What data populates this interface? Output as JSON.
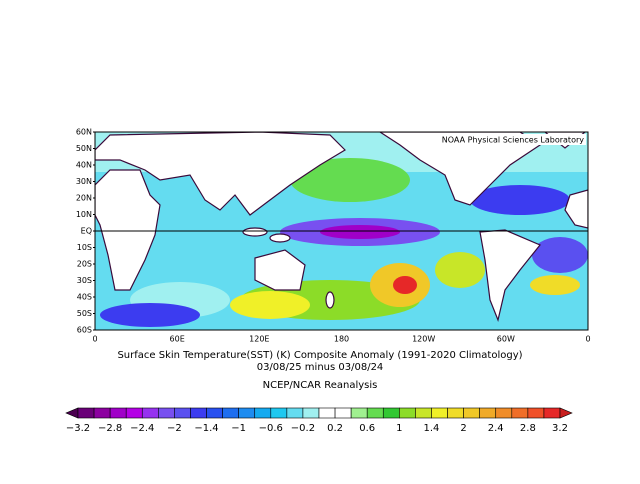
{
  "map": {
    "credit": "NOAA Physical Sciences Laboratory",
    "lat_labels": [
      "60N",
      "50N",
      "40N",
      "30N",
      "20N",
      "10N",
      "EQ",
      "10S",
      "20S",
      "30S",
      "40S",
      "50S",
      "60S"
    ],
    "lon_labels": [
      "0",
      "60E",
      "120E",
      "180",
      "120W",
      "60W",
      "0"
    ],
    "title": "Surface Skin Temperature(SST) (K) Composite Anomaly (1991-2020 Climatology)",
    "subtitle": "03/08/25 minus 03/08/24",
    "source": "NCEP/NCAR Reanalysis",
    "colorbar": {
      "ticks": [
        {
          "value": -3.2,
          "label": "−3.2"
        },
        {
          "value": -2.8,
          "label": "−2.8"
        },
        {
          "value": -2.4,
          "label": "−2.4"
        },
        {
          "value": -2,
          "label": "−2"
        },
        {
          "value": -1.4,
          "label": "−1.4"
        },
        {
          "value": -1,
          "label": "−1"
        },
        {
          "value": -0.6,
          "label": "−0.6"
        },
        {
          "value": -0.2,
          "label": "−0.2"
        },
        0.2,
        0.6,
        1,
        1.4,
        2,
        2.4,
        2.8,
        3.2
      ],
      "colors": [
        "#4b0050",
        "#6a0078",
        "#8c00a0",
        "#a000c8",
        "#b400e6",
        "#9632f0",
        "#7850f0",
        "#5a50f0",
        "#3c3cf0",
        "#2850f0",
        "#1e6ef0",
        "#1e8cf0",
        "#14aaf0",
        "#1ec8f0",
        "#64dcf0",
        "#a0f0f0",
        "#ffffff",
        "#ffffff",
        "#a0f090",
        "#64dc50",
        "#32c832",
        "#8cdc28",
        "#c8e628",
        "#f0f028",
        "#f0dc28",
        "#f0c828",
        "#f0aa28",
        "#f08c28",
        "#f06e28",
        "#f05028",
        "#e62828",
        "#c81e1e"
      ]
    }
  }
}
